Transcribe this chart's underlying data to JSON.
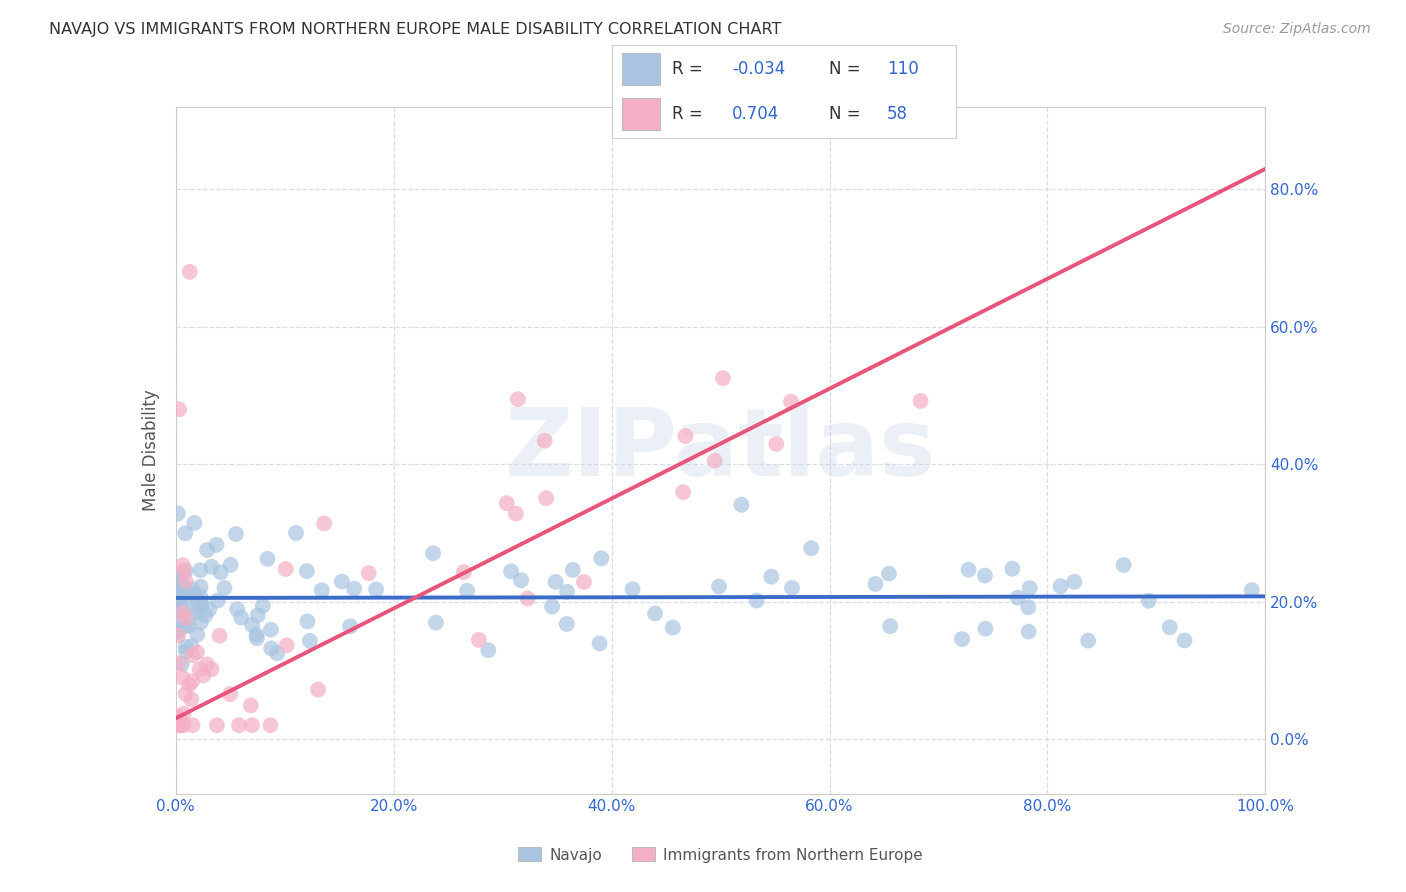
{
  "title": "NAVAJO VS IMMIGRANTS FROM NORTHERN EUROPE MALE DISABILITY CORRELATION CHART",
  "source": "Source: ZipAtlas.com",
  "ylabel": "Male Disability",
  "watermark": "ZIPatlas",
  "navajo_R": -0.034,
  "navajo_N": 110,
  "immigrant_R": 0.704,
  "immigrant_N": 58,
  "navajo_color": "#a8c4e0",
  "navajo_line_color": "#3b6cc7",
  "immigrant_color": "#f4afc4",
  "immigrant_line_color": "#e8547a",
  "background_color": "#ffffff",
  "grid_color": "#d8dde8",
  "title_color": "#333333",
  "axis_label_color": "#555555",
  "legend_r_color": "#3366cc",
  "legend_text_color": "#333333",
  "tick_color": "#3366cc",
  "right_ytick_color": "#3366cc",
  "xlim": [
    0,
    100
  ],
  "ylim": [
    -8,
    92
  ],
  "xticks": [
    0,
    20,
    40,
    60,
    80,
    100
  ],
  "yticks": [
    0,
    20,
    40,
    60,
    80
  ],
  "xticklabels": [
    "0.0%",
    "20.0%",
    "40.0%",
    "60.0%",
    "80.0%",
    "100.0%"
  ],
  "yticklabels": [
    "0.0%",
    "20.0%",
    "40.0%",
    "60.0%",
    "80.0%"
  ],
  "figsize": [
    14.06,
    8.92
  ],
  "dpi": 100
}
